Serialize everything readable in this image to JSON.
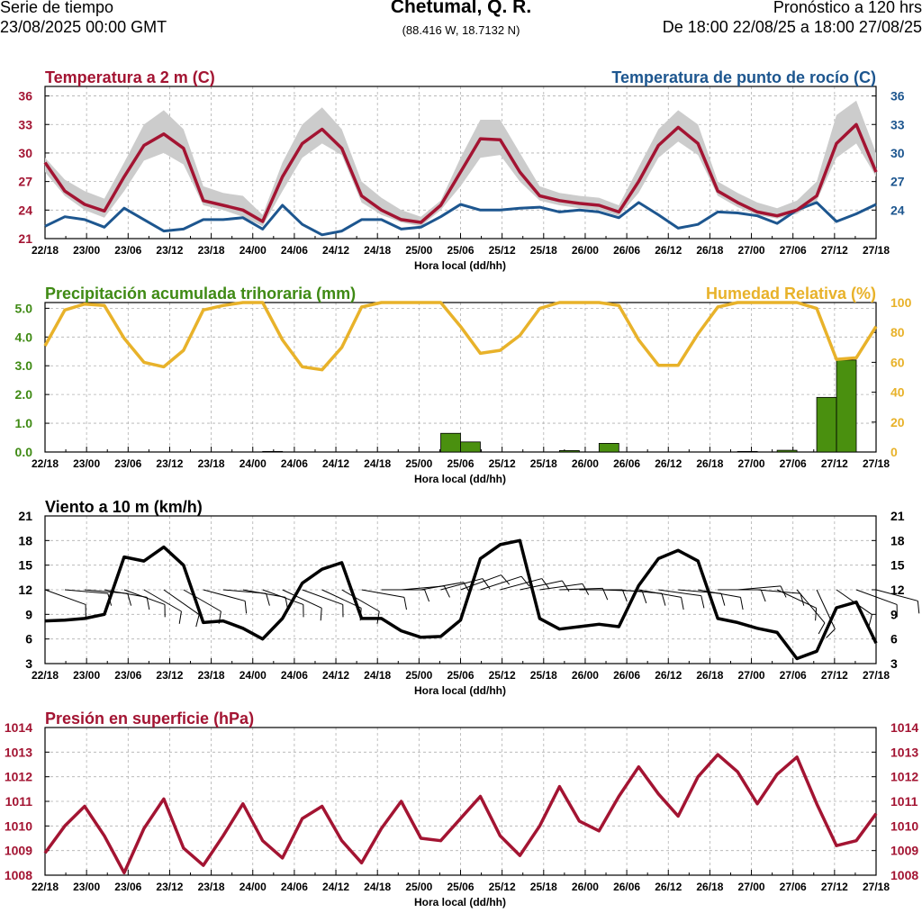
{
  "header": {
    "left_line1": "Serie de tiempo",
    "left_line2": "23/08/2025 00:00 GMT",
    "title": "Chetumal, Q. R.",
    "coords": "(88.416 W, 18.7132 N)",
    "right_line1": "Pronóstico a 120 hrs",
    "right_line2": "De 18:00 22/08/25 a 18:00 27/08/25"
  },
  "colors": {
    "temp": "#a31432",
    "dew": "#1d568f",
    "precip": "#3f8a14",
    "precip_bar": "#4a900f",
    "rh": "#e8b22a",
    "wind": "#000000",
    "pres": "#a31432",
    "band": "#cccccc"
  },
  "chart_data": [
    {
      "type": "line",
      "title_left": "Temperatura a 2 m (C)",
      "title_right": "Temperatura de punto de rocío (C)",
      "xlabel": "Hora local (dd/hh)",
      "x_tick_labels": [
        "22/18",
        "23/00",
        "23/06",
        "23/12",
        "23/18",
        "24/00",
        "24/06",
        "24/12",
        "24/18",
        "25/00",
        "25/06",
        "25/12",
        "25/18",
        "26/00",
        "26/06",
        "26/12",
        "26/18",
        "27/00",
        "27/06",
        "27/12",
        "27/18"
      ],
      "y_left": {
        "ticks": [
          "21",
          "24",
          "27",
          "30",
          "33",
          "36"
        ],
        "range": [
          21,
          37
        ]
      },
      "y_right": {
        "ticks": [
          "24",
          "27",
          "30",
          "33",
          "36"
        ],
        "range": [
          21,
          37
        ]
      },
      "series": [
        {
          "name": "Temperatura a 2 m (C)",
          "x_step_hours": 3,
          "values": [
            29.0,
            26.0,
            24.6,
            23.9,
            27.5,
            30.8,
            32.0,
            30.5,
            25.0,
            24.5,
            24.0,
            22.8,
            27.5,
            31.0,
            32.5,
            30.5,
            25.5,
            24.0,
            23.0,
            22.7,
            24.5,
            28.0,
            31.5,
            31.4,
            28.0,
            25.5,
            25.0,
            24.7,
            24.5,
            23.8,
            27.0,
            30.8,
            32.7,
            31.0,
            26.0,
            24.8,
            23.8,
            23.4,
            24.0,
            25.5,
            31.0,
            33.0,
            28.0
          ]
        },
        {
          "name": "Temperatura de punto de rocío (C)",
          "x_step_hours": 3,
          "values": [
            22.3,
            23.3,
            23.0,
            22.2,
            24.2,
            23.0,
            21.8,
            22.0,
            23.0,
            23.0,
            23.2,
            22.0,
            24.5,
            22.5,
            21.4,
            21.8,
            23.0,
            23.0,
            22.0,
            22.2,
            23.3,
            24.6,
            24.0,
            24.0,
            24.2,
            24.3,
            23.8,
            24.0,
            23.8,
            23.2,
            24.8,
            23.5,
            22.1,
            22.5,
            23.8,
            23.7,
            23.4,
            22.6,
            24.0,
            24.8,
            22.8,
            23.6,
            24.6
          ]
        },
        {
          "name": "Banda de incertidumbre (C)",
          "x_step_hours": 3,
          "values_low": [
            28.0,
            25.5,
            24.0,
            23.2,
            26.0,
            29.2,
            30.0,
            28.8,
            24.5,
            24.0,
            23.3,
            22.3,
            26.0,
            29.5,
            31.0,
            29.8,
            24.8,
            23.5,
            22.7,
            22.3,
            24.0,
            26.5,
            29.5,
            29.8,
            27.0,
            25.0,
            24.5,
            24.2,
            24.0,
            23.4,
            25.8,
            29.5,
            31.2,
            29.8,
            25.5,
            24.3,
            23.5,
            23.1,
            23.6,
            25.0,
            29.5,
            31.0,
            27.5
          ],
          "values_high": [
            29.5,
            27.2,
            26.0,
            25.2,
            29.0,
            33.0,
            34.5,
            32.5,
            26.5,
            25.8,
            25.5,
            23.5,
            29.0,
            33.0,
            34.8,
            32.5,
            27.0,
            25.3,
            24.0,
            23.3,
            25.0,
            29.5,
            33.5,
            33.5,
            30.0,
            26.5,
            25.8,
            25.5,
            25.3,
            24.5,
            28.5,
            32.5,
            34.5,
            33.0,
            27.0,
            25.8,
            24.8,
            24.2,
            25.0,
            27.0,
            34.0,
            35.5,
            30.0
          ]
        }
      ]
    },
    {
      "type": "bar",
      "title_left": "Precipitación acumulada trihoraria (mm)",
      "title_right": "Humedad Relativa (%)",
      "xlabel": "Hora local (dd/hh)",
      "x_tick_labels": [
        "22/18",
        "23/00",
        "23/06",
        "23/12",
        "23/18",
        "24/00",
        "24/06",
        "24/12",
        "24/18",
        "25/00",
        "25/06",
        "25/12",
        "25/18",
        "26/00",
        "26/06",
        "26/12",
        "26/18",
        "27/00",
        "27/06",
        "27/12",
        "27/18"
      ],
      "y_left": {
        "ticks": [
          "0.0",
          "1.0",
          "2.0",
          "3.0",
          "4.0",
          "5.0"
        ],
        "range": [
          0,
          5.2
        ]
      },
      "y_right": {
        "ticks": [
          "0",
          "20",
          "40",
          "60",
          "80",
          "100"
        ],
        "range": [
          0,
          100
        ]
      },
      "series": [
        {
          "name": "Precipitación acumulada trihoraria (mm)",
          "type": "bar",
          "x_step_hours": 3,
          "values": [
            0,
            0,
            0,
            0,
            0,
            0,
            0,
            0,
            0,
            0,
            0,
            0,
            0.02,
            0,
            0,
            0,
            0,
            0,
            0,
            0,
            0,
            0.65,
            0.35,
            0,
            0,
            0,
            0,
            0.05,
            0,
            0.3,
            0,
            0,
            0,
            0,
            0,
            0,
            0.02,
            0,
            0.06,
            0,
            1.9,
            3.2,
            0
          ]
        },
        {
          "name": "Humedad Relativa (%)",
          "type": "line",
          "x_step_hours": 3,
          "values": [
            71,
            95,
            99,
            98,
            76,
            60,
            57,
            68,
            95,
            98,
            100,
            100,
            75,
            57,
            55,
            70,
            97,
            100,
            100,
            100,
            100,
            84,
            66,
            68,
            78,
            96,
            100,
            100,
            100,
            98,
            75,
            58,
            58,
            79,
            97,
            100,
            100,
            100,
            100,
            96,
            62,
            63,
            84
          ]
        }
      ]
    },
    {
      "type": "line",
      "title_left": "Viento a 10 m (km/h)",
      "xlabel": "Hora local (dd/hh)",
      "x_tick_labels": [
        "22/18",
        "23/00",
        "23/06",
        "23/12",
        "23/18",
        "24/00",
        "24/06",
        "24/12",
        "24/18",
        "25/00",
        "25/06",
        "25/12",
        "25/18",
        "26/00",
        "26/06",
        "26/12",
        "26/18",
        "27/00",
        "27/06",
        "27/12",
        "27/18"
      ],
      "y_left": {
        "ticks": [
          "3",
          "6",
          "9",
          "12",
          "15",
          "18",
          "21"
        ],
        "range": [
          3,
          21
        ]
      },
      "y_right": {
        "ticks": [
          "3",
          "6",
          "9",
          "12",
          "15",
          "18",
          "21"
        ],
        "range": [
          3,
          21
        ]
      },
      "series": [
        {
          "name": "Rapidez del viento (km/h)",
          "x_step_hours": 3,
          "values": [
            8.2,
            8.3,
            8.5,
            9.0,
            16.0,
            15.5,
            17.2,
            15.0,
            8.0,
            8.2,
            7.3,
            6.0,
            8.5,
            12.8,
            14.5,
            15.3,
            8.5,
            8.5,
            7.0,
            6.2,
            6.3,
            8.3,
            15.8,
            17.5,
            18.0,
            8.5,
            7.2,
            7.5,
            7.8,
            7.5,
            12.5,
            15.8,
            16.8,
            15.5,
            8.5,
            8.0,
            7.3,
            6.8,
            3.6,
            4.5,
            9.8,
            10.5,
            5.5
          ]
        },
        {
          "name": "Barbas de viento (dirección °)",
          "type": "barbs",
          "x_step_hours": 3,
          "values": [
            110,
            95,
            95,
            100,
            110,
            120,
            125,
            120,
            105,
            95,
            100,
            110,
            115,
            110,
            115,
            120,
            100,
            90,
            85,
            80,
            75,
            70,
            72,
            75,
            78,
            82,
            88,
            90,
            92,
            95,
            100,
            98,
            95,
            100,
            90,
            85,
            95,
            115,
            140,
            155,
            125,
            110,
            105
          ]
        }
      ]
    },
    {
      "type": "line",
      "title_left": "Presión en superficie (hPa)",
      "xlabel": "Hora local (dd/hh)",
      "x_tick_labels": [
        "22/18",
        "23/00",
        "23/06",
        "23/12",
        "23/18",
        "24/00",
        "24/06",
        "24/12",
        "24/18",
        "25/00",
        "25/06",
        "25/12",
        "25/18",
        "26/00",
        "26/06",
        "26/12",
        "26/18",
        "27/00",
        "27/06",
        "27/12",
        "27/18"
      ],
      "y_left": {
        "ticks": [
          "1008",
          "1009",
          "1010",
          "1011",
          "1012",
          "1013",
          "1014"
        ],
        "range": [
          1008,
          1014
        ]
      },
      "y_right": {
        "ticks": [
          "1008",
          "1009",
          "1010",
          "1011",
          "1012",
          "1013",
          "1014"
        ],
        "range": [
          1008,
          1014
        ]
      },
      "series": [
        {
          "name": "Presión en superficie (hPa)",
          "x_step_hours": 3,
          "values": [
            1008.9,
            1010.0,
            1010.8,
            1009.6,
            1008.1,
            1009.9,
            1011.1,
            1009.1,
            1008.4,
            1009.6,
            1010.9,
            1009.4,
            1008.7,
            1010.3,
            1010.8,
            1009.4,
            1008.5,
            1009.9,
            1011.0,
            1009.5,
            1009.4,
            1010.3,
            1011.2,
            1009.6,
            1008.8,
            1010.0,
            1011.6,
            1010.2,
            1009.8,
            1011.2,
            1012.4,
            1011.3,
            1010.4,
            1012.0,
            1012.9,
            1012.2,
            1010.9,
            1012.1,
            1012.8,
            1010.9,
            1009.2,
            1009.4,
            1010.5
          ]
        }
      ]
    }
  ]
}
